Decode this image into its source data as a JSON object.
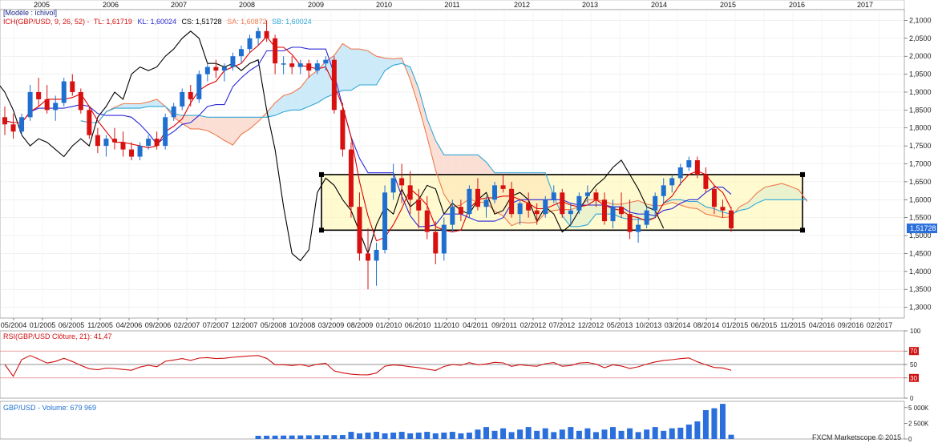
{
  "header": {
    "model_label": "[Modèle : ichivol]",
    "ichimoku": {
      "prefix": "ICH(GBP/USD, 9, 26, 52) -",
      "tl": "TL: 1,61719",
      "kl": "KL: 1,60024",
      "cs": "CS: 1,51728",
      "sa": "SA: 1,60872",
      "sb": "SB: 1,60024"
    }
  },
  "colors": {
    "tenkan": "#e00000",
    "kijun": "#2a2ad8",
    "chikou": "#000000",
    "senkou_a": "#f07a50",
    "senkou_b": "#30a8d8",
    "cloud_bull": "#c8e8f8",
    "cloud_bear": "#fbdcd0",
    "candle_up": "#1e6fd0",
    "candle_down": "#d81010",
    "box_fill": "#fff6b0",
    "rsi_line": "#d01010",
    "volume_bar": "#2a6fdc",
    "price_badge": "#2a6fdc"
  },
  "top_year_labels": [
    "2005",
    "2006",
    "2007",
    "2008",
    "2009",
    "2010",
    "2011",
    "2012",
    "2013",
    "2014",
    "2015",
    "2016",
    "2017"
  ],
  "current_price_label": "1,51728",
  "rsi_panel": {
    "title": "RSI(GBP/USD Clôture, 21): 41,47",
    "ticks": [
      "100",
      "70",
      "50",
      "30",
      "0"
    ]
  },
  "volume_panel": {
    "title": "GBP/USD - Volume: 679 969",
    "ticks": [
      "5 000K",
      "2 500K",
      "0"
    ]
  },
  "watermark": "FXCM Marketscope © 2015",
  "chart_data": {
    "type": "candlestick",
    "symbol": "GBP/USD",
    "ylim": [
      1.27,
      2.13
    ],
    "y_ticks": [
      "2,1000",
      "2,0500",
      "2,0000",
      "1,9500",
      "1,9000",
      "1,8500",
      "1,8000",
      "1,7500",
      "1,7000",
      "1,6500",
      "1,6000",
      "1,5500",
      "1,5000",
      "1,4500",
      "1,4000",
      "1,3500",
      "1,3000"
    ],
    "x_tick_labels": [
      "05/2004",
      "01/2005",
      "06/2005",
      "11/2005",
      "04/2006",
      "09/2006",
      "02/2007",
      "07/2007",
      "12/2007",
      "05/2008",
      "10/2008",
      "03/2009",
      "08/2009",
      "01/2010",
      "06/2010",
      "11/2010",
      "04/2011",
      "09/2011",
      "02/2012",
      "07/2012",
      "12/2012",
      "05/2013",
      "10/2013",
      "03/2014",
      "08/2014",
      "01/2015",
      "06/2015",
      "11/2015",
      "04/2016",
      "09/2016",
      "02/2017"
    ],
    "range_box": {
      "high": 1.67,
      "low": 1.515
    },
    "candles": [
      [
        1.83,
        1.86,
        1.78,
        1.81
      ],
      [
        1.81,
        1.84,
        1.77,
        1.79
      ],
      [
        1.79,
        1.84,
        1.78,
        1.83
      ],
      [
        1.83,
        1.92,
        1.82,
        1.9
      ],
      [
        1.9,
        1.94,
        1.86,
        1.88
      ],
      [
        1.88,
        1.92,
        1.84,
        1.85
      ],
      [
        1.85,
        1.89,
        1.82,
        1.87
      ],
      [
        1.87,
        1.94,
        1.86,
        1.93
      ],
      [
        1.93,
        1.95,
        1.89,
        1.9
      ],
      [
        1.9,
        1.91,
        1.84,
        1.85
      ],
      [
        1.85,
        1.86,
        1.77,
        1.78
      ],
      [
        1.78,
        1.8,
        1.73,
        1.75
      ],
      [
        1.75,
        1.78,
        1.72,
        1.77
      ],
      [
        1.77,
        1.8,
        1.74,
        1.76
      ],
      [
        1.76,
        1.79,
        1.72,
        1.74
      ],
      [
        1.74,
        1.76,
        1.71,
        1.72
      ],
      [
        1.72,
        1.76,
        1.71,
        1.75
      ],
      [
        1.75,
        1.78,
        1.74,
        1.77
      ],
      [
        1.77,
        1.79,
        1.74,
        1.75
      ],
      [
        1.75,
        1.84,
        1.74,
        1.83
      ],
      [
        1.83,
        1.87,
        1.82,
        1.86
      ],
      [
        1.86,
        1.91,
        1.85,
        1.9
      ],
      [
        1.9,
        1.92,
        1.86,
        1.88
      ],
      [
        1.88,
        1.96,
        1.87,
        1.95
      ],
      [
        1.95,
        1.98,
        1.93,
        1.97
      ],
      [
        1.97,
        1.99,
        1.94,
        1.96
      ],
      [
        1.96,
        1.98,
        1.93,
        1.97
      ],
      [
        1.97,
        2.01,
        1.96,
        2.0
      ],
      [
        2.0,
        2.03,
        1.98,
        2.02
      ],
      [
        2.02,
        2.06,
        2.01,
        2.05
      ],
      [
        2.05,
        2.08,
        2.03,
        2.07
      ],
      [
        2.07,
        2.1,
        2.04,
        2.05
      ],
      [
        2.05,
        2.06,
        1.95,
        1.98
      ],
      [
        1.98,
        2.0,
        1.95,
        1.98
      ],
      [
        1.98,
        2.0,
        1.95,
        1.97
      ],
      [
        1.97,
        1.99,
        1.95,
        1.98
      ],
      [
        1.98,
        1.99,
        1.94,
        1.96
      ],
      [
        1.96,
        1.99,
        1.95,
        1.98
      ],
      [
        1.98,
        2.0,
        1.96,
        1.99
      ],
      [
        1.99,
        2.0,
        1.84,
        1.85
      ],
      [
        1.85,
        1.87,
        1.72,
        1.74
      ],
      [
        1.74,
        1.76,
        1.55,
        1.58
      ],
      [
        1.58,
        1.62,
        1.43,
        1.45
      ],
      [
        1.45,
        1.52,
        1.35,
        1.43
      ],
      [
        1.43,
        1.48,
        1.36,
        1.46
      ],
      [
        1.46,
        1.64,
        1.45,
        1.62
      ],
      [
        1.62,
        1.7,
        1.6,
        1.66
      ],
      [
        1.66,
        1.7,
        1.59,
        1.64
      ],
      [
        1.64,
        1.68,
        1.56,
        1.6
      ],
      [
        1.6,
        1.63,
        1.52,
        1.57
      ],
      [
        1.57,
        1.61,
        1.49,
        1.51
      ],
      [
        1.51,
        1.54,
        1.42,
        1.45
      ],
      [
        1.45,
        1.55,
        1.43,
        1.53
      ],
      [
        1.53,
        1.6,
        1.51,
        1.58
      ],
      [
        1.58,
        1.6,
        1.54,
        1.56
      ],
      [
        1.56,
        1.64,
        1.55,
        1.63
      ],
      [
        1.63,
        1.66,
        1.57,
        1.58
      ],
      [
        1.58,
        1.61,
        1.55,
        1.6
      ],
      [
        1.6,
        1.65,
        1.59,
        1.64
      ],
      [
        1.64,
        1.67,
        1.62,
        1.63
      ],
      [
        1.63,
        1.65,
        1.55,
        1.56
      ],
      [
        1.56,
        1.6,
        1.53,
        1.59
      ],
      [
        1.59,
        1.62,
        1.55,
        1.57
      ],
      [
        1.57,
        1.59,
        1.53,
        1.56
      ],
      [
        1.56,
        1.61,
        1.55,
        1.6
      ],
      [
        1.6,
        1.64,
        1.59,
        1.62
      ],
      [
        1.62,
        1.63,
        1.55,
        1.56
      ],
      [
        1.56,
        1.59,
        1.53,
        1.57
      ],
      [
        1.57,
        1.62,
        1.56,
        1.61
      ],
      [
        1.61,
        1.64,
        1.59,
        1.62
      ],
      [
        1.62,
        1.63,
        1.58,
        1.6
      ],
      [
        1.6,
        1.62,
        1.53,
        1.54
      ],
      [
        1.54,
        1.6,
        1.52,
        1.58
      ],
      [
        1.58,
        1.62,
        1.55,
        1.56
      ],
      [
        1.56,
        1.6,
        1.49,
        1.51
      ],
      [
        1.51,
        1.55,
        1.48,
        1.53
      ],
      [
        1.53,
        1.58,
        1.52,
        1.57
      ],
      [
        1.57,
        1.62,
        1.55,
        1.61
      ],
      [
        1.61,
        1.66,
        1.59,
        1.64
      ],
      [
        1.64,
        1.67,
        1.62,
        1.66
      ],
      [
        1.66,
        1.7,
        1.64,
        1.69
      ],
      [
        1.69,
        1.72,
        1.68,
        1.71
      ],
      [
        1.71,
        1.72,
        1.66,
        1.67
      ],
      [
        1.67,
        1.69,
        1.62,
        1.63
      ],
      [
        1.63,
        1.64,
        1.56,
        1.58
      ],
      [
        1.58,
        1.6,
        1.55,
        1.57
      ],
      [
        1.57,
        1.58,
        1.51,
        1.52
      ]
    ],
    "rsi_levels": {
      "upper": 70,
      "mid": 50,
      "lower": 30
    },
    "rsi_last": 41.47,
    "volume_last": 679969
  }
}
